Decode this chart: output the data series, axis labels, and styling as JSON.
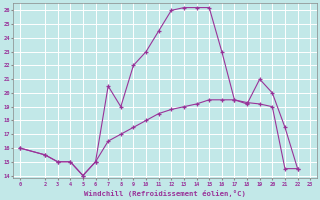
{
  "xlabel": "Windchill (Refroidissement éolien,°C)",
  "background_color": "#c2e8e8",
  "grid_color": "#ffffff",
  "line_color": "#993399",
  "x_temp": [
    0,
    2,
    3,
    4,
    5,
    6,
    7,
    8,
    9,
    10,
    11,
    12,
    13,
    14,
    15,
    16,
    17,
    18,
    19,
    20,
    21,
    22
  ],
  "temp_line": [
    16,
    15.5,
    15,
    15,
    14,
    15,
    20.5,
    19,
    22,
    23,
    24.5,
    26,
    26.2,
    26.2,
    26.2,
    23,
    19.5,
    19.2,
    21,
    20,
    17.5,
    14.5
  ],
  "x_wc": [
    0,
    2,
    3,
    4,
    5,
    6,
    7,
    8,
    9,
    10,
    11,
    12,
    13,
    14,
    15,
    16,
    17,
    18,
    19,
    20,
    21,
    22
  ],
  "windchill_line": [
    16,
    15.5,
    15,
    15,
    14,
    15,
    16.5,
    17,
    17.5,
    18,
    18.5,
    18.8,
    19,
    19.2,
    19.5,
    19.5,
    19.5,
    19.3,
    19.2,
    19,
    14.5,
    14.5
  ],
  "ylim": [
    13.8,
    26.5
  ],
  "xlim": [
    -0.5,
    23.5
  ],
  "yticks": [
    14,
    15,
    16,
    17,
    18,
    19,
    20,
    21,
    22,
    23,
    24,
    25,
    26
  ],
  "xticks": [
    0,
    2,
    3,
    4,
    5,
    6,
    7,
    8,
    9,
    10,
    11,
    12,
    13,
    14,
    15,
    16,
    17,
    18,
    19,
    20,
    21,
    22,
    23
  ]
}
